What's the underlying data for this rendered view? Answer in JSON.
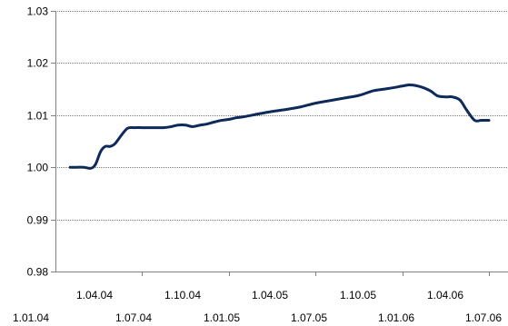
{
  "chart_data": {
    "type": "line",
    "title": "",
    "xlabel": "",
    "ylabel": "",
    "ylim": [
      0.98,
      1.03
    ],
    "y_ticks": [
      "0.98",
      "0.99",
      "1.00",
      "1.01",
      "1.02",
      "1.03"
    ],
    "x_tick_labels_row_1": [
      "1.04.04",
      "1.10.04",
      "1.04.05",
      "1.10.05",
      "1.04.06"
    ],
    "x_tick_labels_row_2": [
      "1.01.04",
      "1.07.04",
      "1.01.05",
      "1.07.05",
      "1.01.06",
      "1.07.06"
    ],
    "grid": "horizontal",
    "legend": "none",
    "series_color": "#0d2a5a",
    "series": [
      {
        "x": [
          "2004-02-01",
          "2004-02-15",
          "2004-03-01",
          "2004-03-15",
          "2004-03-25",
          "2004-04-05",
          "2004-04-15",
          "2004-04-25",
          "2004-05-05",
          "2004-05-20",
          "2004-06-01",
          "2004-06-15",
          "2004-07-01",
          "2004-07-15",
          "2004-08-01",
          "2004-08-15",
          "2004-09-01",
          "2004-09-15",
          "2004-10-01",
          "2004-10-15",
          "2004-11-01",
          "2004-11-15",
          "2004-12-01",
          "2004-12-15",
          "2005-01-01",
          "2005-01-15",
          "2005-02-01",
          "2005-03-01",
          "2005-04-01",
          "2005-05-01",
          "2005-06-01",
          "2005-07-01",
          "2005-08-01",
          "2005-09-01",
          "2005-10-01",
          "2005-11-01",
          "2005-12-01",
          "2006-01-01",
          "2006-01-15",
          "2006-02-01",
          "2006-02-15",
          "2006-03-01",
          "2006-03-15",
          "2006-04-01",
          "2006-04-15",
          "2006-05-01",
          "2006-05-15",
          "2006-06-01",
          "2006-06-15",
          "2006-07-01"
        ],
        "values": [
          1.0,
          1.0,
          1.0,
          0.9998,
          1.0005,
          1.003,
          1.004,
          1.004,
          1.0045,
          1.0063,
          1.0075,
          1.0076,
          1.0076,
          1.0076,
          1.0076,
          1.0076,
          1.0078,
          1.0081,
          1.0081,
          1.0078,
          1.0081,
          1.0083,
          1.0087,
          1.009,
          1.0092,
          1.0095,
          1.0097,
          1.0102,
          1.0107,
          1.0111,
          1.0116,
          1.0123,
          1.0128,
          1.0133,
          1.0138,
          1.0147,
          1.0151,
          1.0156,
          1.0158,
          1.0156,
          1.0152,
          1.0146,
          1.0137,
          1.0135,
          1.0135,
          1.0129,
          1.011,
          1.009,
          1.009,
          1.009
        ]
      }
    ]
  }
}
